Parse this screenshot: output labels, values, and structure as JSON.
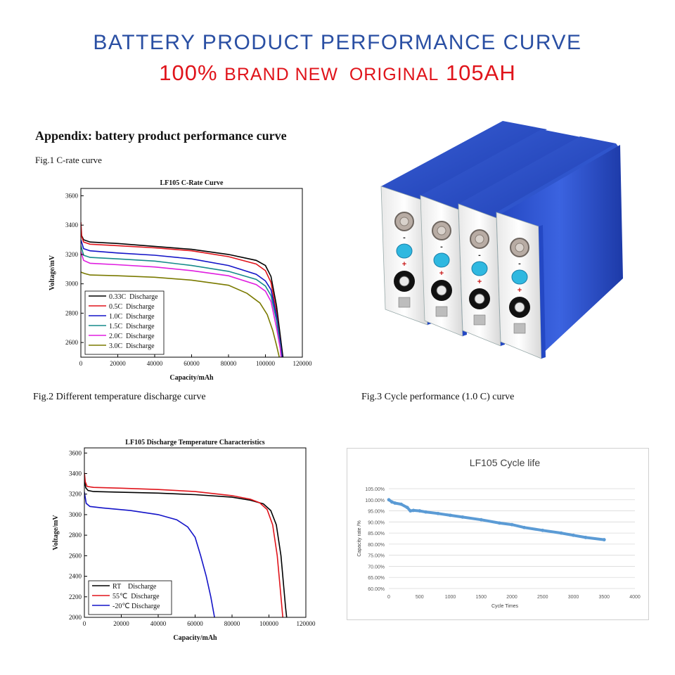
{
  "header": {
    "line1": "BATTERY PRODUCT PERFORMANCE CURVE",
    "line2_a": "100% ",
    "line2_b": "BRAND NEW  ORIGINAL",
    "line2_c": " 105AH"
  },
  "captions": {
    "appendix": "Appendix: battery product performance curve",
    "fig1": "Fig.1 C-rate curve",
    "fig2": "Fig.2 Different temperature discharge curve",
    "fig3": "Fig.3 Cycle performance (1.0 C) curve"
  },
  "product": {
    "polarity_minus": "-",
    "polarity_plus": "+"
  },
  "chart_data": [
    {
      "type": "line",
      "title": "LF105 C-Rate Curve",
      "xlabel": "Capacity/mAh",
      "ylabel": "Voltage/mV",
      "xlim": [
        0,
        120000
      ],
      "ylim": [
        2500,
        3650
      ],
      "xticks": [
        0,
        20000,
        40000,
        60000,
        80000,
        100000,
        120000
      ],
      "yticks": [
        2600,
        2800,
        3000,
        3200,
        3400,
        3600
      ],
      "grid": false,
      "legend": "bottom-left",
      "colors": {
        "s1": "#000000",
        "s2": "#e0141b",
        "s3": "#1414c8",
        "s4": "#168b8b",
        "s5": "#e01ee0",
        "s6": "#7a7a00"
      },
      "series": [
        {
          "name": "0.33C  Discharge",
          "x": [
            0,
            1500,
            5000,
            20000,
            40000,
            60000,
            80000,
            95000,
            100000,
            103000,
            106000,
            108000,
            109500
          ],
          "y": [
            3340,
            3300,
            3285,
            3275,
            3255,
            3235,
            3200,
            3160,
            3125,
            3050,
            2850,
            2650,
            2500
          ]
        },
        {
          "name": "0.5C  Discharge",
          "x": [
            0,
            500,
            1500,
            5000,
            20000,
            40000,
            60000,
            80000,
            95000,
            100000,
            103000,
            106000,
            108000,
            109000
          ],
          "y": [
            3420,
            3320,
            3285,
            3270,
            3260,
            3245,
            3225,
            3185,
            3135,
            3090,
            3010,
            2800,
            2600,
            2500
          ]
        },
        {
          "name": "1.0C  Discharge",
          "x": [
            0,
            1500,
            5000,
            20000,
            40000,
            60000,
            80000,
            95000,
            100000,
            103000,
            106000,
            108000,
            109000
          ],
          "y": [
            3300,
            3240,
            3225,
            3210,
            3195,
            3170,
            3125,
            3065,
            3020,
            2960,
            2780,
            2600,
            2500
          ]
        },
        {
          "name": "1.5C  Discharge",
          "x": [
            0,
            1500,
            5000,
            20000,
            40000,
            60000,
            80000,
            95000,
            100000,
            103000,
            106000,
            108000,
            108700
          ],
          "y": [
            3260,
            3195,
            3180,
            3170,
            3155,
            3125,
            3085,
            3030,
            2985,
            2920,
            2750,
            2580,
            2500
          ]
        },
        {
          "name": "2.0C  Discharge",
          "x": [
            0,
            1500,
            5000,
            20000,
            40000,
            60000,
            80000,
            95000,
            100000,
            103000,
            106000,
            108000,
            108500
          ],
          "y": [
            3220,
            3160,
            3140,
            3130,
            3115,
            3090,
            3055,
            2995,
            2950,
            2880,
            2700,
            2560,
            2500
          ]
        },
        {
          "name": "3.0C  Discharge",
          "x": [
            0,
            2000,
            5000,
            20000,
            40000,
            60000,
            80000,
            90000,
            97000,
            101000,
            104000,
            106000,
            107500
          ],
          "y": [
            3080,
            3070,
            3060,
            3055,
            3045,
            3025,
            2990,
            2935,
            2870,
            2790,
            2680,
            2580,
            2500
          ]
        }
      ]
    },
    {
      "type": "line",
      "title": "LF105 Discharge Temperature Characteristics",
      "xlabel": "Capacity/mAh",
      "ylabel": "Voltage/mV",
      "xlim": [
        0,
        120000
      ],
      "ylim": [
        2000,
        3650
      ],
      "xticks": [
        0,
        20000,
        40000,
        60000,
        80000,
        100000,
        120000
      ],
      "yticks": [
        2000,
        2200,
        2400,
        2600,
        2800,
        3000,
        3200,
        3400,
        3600
      ],
      "grid": false,
      "legend": "bottom-left",
      "colors": {
        "s1": "#000000",
        "s2": "#e0141b",
        "s3": "#1414c8"
      },
      "series": [
        {
          "name": "RT    Discharge",
          "x": [
            0,
            800,
            2000,
            5000,
            20000,
            40000,
            60000,
            80000,
            90000,
            97000,
            101000,
            104000,
            106500,
            108000,
            109000,
            109600
          ],
          "y": [
            3330,
            3260,
            3235,
            3225,
            3218,
            3210,
            3195,
            3170,
            3140,
            3105,
            3040,
            2900,
            2600,
            2300,
            2100,
            2000
          ]
        },
        {
          "name": "55℃  Discharge",
          "x": [
            0,
            500,
            1500,
            5000,
            20000,
            40000,
            60000,
            80000,
            90000,
            95000,
            99000,
            102000,
            104500,
            106000,
            107000,
            107500
          ],
          "y": [
            3410,
            3320,
            3275,
            3265,
            3258,
            3245,
            3225,
            3185,
            3150,
            3115,
            3050,
            2900,
            2600,
            2300,
            2100,
            2000
          ]
        },
        {
          "name": "-20℃ Discharge",
          "x": [
            0,
            1000,
            3000,
            10000,
            25000,
            40000,
            50000,
            56000,
            60000,
            63000,
            66000,
            68500,
            70500
          ],
          "y": [
            3220,
            3110,
            3080,
            3065,
            3040,
            3000,
            2950,
            2880,
            2780,
            2600,
            2400,
            2200,
            2000
          ]
        }
      ]
    },
    {
      "type": "scatter",
      "title": "LF105 Cycle life",
      "xlabel": "Cycle Times",
      "ylabel": "Capacity rate /%",
      "xlim": [
        0,
        4000
      ],
      "ylim": [
        60,
        105
      ],
      "xticks": [
        0,
        500,
        1000,
        1500,
        2000,
        2500,
        3000,
        3500,
        4000
      ],
      "yticks": [
        60,
        65,
        70,
        75,
        80,
        85,
        90,
        95,
        100,
        105
      ],
      "ytick_labels": [
        "60.00%",
        "65.00%",
        "70.00%",
        "75.00%",
        "80.00%",
        "85.00%",
        "90.00%",
        "95.00%",
        "100.00%",
        "105.00%"
      ],
      "grid": true,
      "colors": {
        "s1": "#5b9bd5"
      },
      "series": [
        {
          "x": [
            0,
            50,
            100,
            200,
            300,
            350,
            400,
            500,
            600,
            800,
            1000,
            1200,
            1500,
            1800,
            2000,
            2200,
            2500,
            2800,
            3000,
            3200,
            3500
          ],
          "y": [
            100,
            99,
            98.5,
            98,
            96.5,
            95,
            95.2,
            95,
            94.5,
            93.8,
            93,
            92.2,
            91,
            89.5,
            88.8,
            87.5,
            86.2,
            85,
            84,
            83,
            82
          ]
        }
      ]
    }
  ]
}
